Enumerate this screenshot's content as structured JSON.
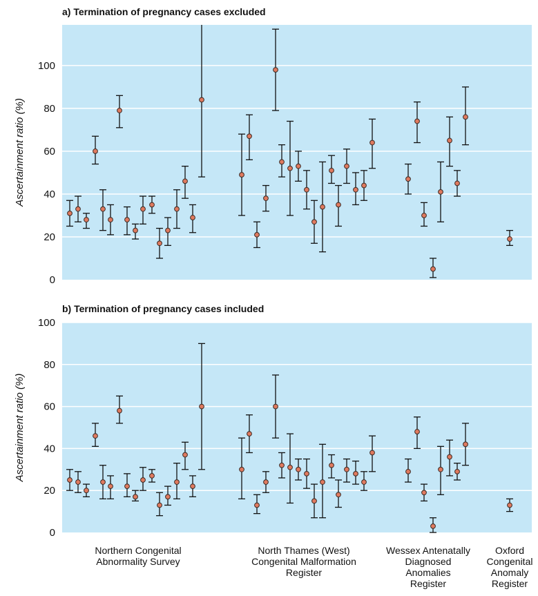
{
  "colors": {
    "plot_background": "#c5e7f7",
    "gridline": "#ffffff",
    "error_bar": "#111111",
    "point_fill": "#e07a5f",
    "point_stroke": "#3a2a25"
  },
  "chart_data": [
    {
      "type": "scatter",
      "title": "a) Termination of pregnancy cases excluded",
      "ylabel": "Ascertainment ratio (%)",
      "ylim": [
        0,
        119
      ],
      "yticks": [
        0,
        20,
        40,
        60,
        80,
        100
      ],
      "grid": true,
      "points": [
        {
          "group": 0,
          "index": 0,
          "value": 31,
          "lower": 25,
          "upper": 37
        },
        {
          "group": 0,
          "index": 1,
          "value": 33,
          "lower": 27,
          "upper": 39
        },
        {
          "group": 0,
          "index": 2,
          "value": 28,
          "lower": 24,
          "upper": 31
        },
        {
          "group": 0,
          "index": 3,
          "value": 60,
          "lower": 54,
          "upper": 67
        },
        {
          "group": 0,
          "index": 4,
          "value": 33,
          "lower": 23,
          "upper": 42
        },
        {
          "group": 0,
          "index": 5,
          "value": 28,
          "lower": 21,
          "upper": 35
        },
        {
          "group": 0,
          "index": 6,
          "value": 79,
          "lower": 71,
          "upper": 86
        },
        {
          "group": 0,
          "index": 7,
          "value": 28,
          "lower": 21,
          "upper": 34
        },
        {
          "group": 0,
          "index": 8,
          "value": 23,
          "lower": 19,
          "upper": 26
        },
        {
          "group": 0,
          "index": 9,
          "value": 33,
          "lower": 26,
          "upper": 39
        },
        {
          "group": 0,
          "index": 10,
          "value": 35,
          "lower": 31,
          "upper": 39
        },
        {
          "group": 0,
          "index": 11,
          "value": 17,
          "lower": 10,
          "upper": 24
        },
        {
          "group": 0,
          "index": 12,
          "value": 23,
          "lower": 16,
          "upper": 29
        },
        {
          "group": 0,
          "index": 13,
          "value": 33,
          "lower": 24,
          "upper": 42
        },
        {
          "group": 0,
          "index": 14,
          "value": 46,
          "lower": 38,
          "upper": 53
        },
        {
          "group": 0,
          "index": 15,
          "value": 29,
          "lower": 22,
          "upper": 35
        },
        {
          "group": 0,
          "index": 16,
          "value": 84,
          "lower": 48,
          "upper": 120
        },
        {
          "group": 1,
          "index": 0,
          "value": 49,
          "lower": 30,
          "upper": 68
        },
        {
          "group": 1,
          "index": 1,
          "value": 67,
          "lower": 56,
          "upper": 77
        },
        {
          "group": 1,
          "index": 2,
          "value": 21,
          "lower": 15,
          "upper": 27
        },
        {
          "group": 1,
          "index": 3,
          "value": 38,
          "lower": 32,
          "upper": 44
        },
        {
          "group": 1,
          "index": 4,
          "value": 98,
          "lower": 79,
          "upper": 117
        },
        {
          "group": 1,
          "index": 5,
          "value": 55,
          "lower": 48,
          "upper": 63
        },
        {
          "group": 1,
          "index": 6,
          "value": 52,
          "lower": 30,
          "upper": 74
        },
        {
          "group": 1,
          "index": 7,
          "value": 53,
          "lower": 46,
          "upper": 60
        },
        {
          "group": 1,
          "index": 8,
          "value": 42,
          "lower": 33,
          "upper": 51
        },
        {
          "group": 1,
          "index": 9,
          "value": 27,
          "lower": 17,
          "upper": 37
        },
        {
          "group": 1,
          "index": 10,
          "value": 34,
          "lower": 13,
          "upper": 55
        },
        {
          "group": 1,
          "index": 11,
          "value": 51,
          "lower": 45,
          "upper": 58
        },
        {
          "group": 1,
          "index": 12,
          "value": 35,
          "lower": 25,
          "upper": 44
        },
        {
          "group": 1,
          "index": 13,
          "value": 53,
          "lower": 45,
          "upper": 61
        },
        {
          "group": 1,
          "index": 14,
          "value": 42,
          "lower": 35,
          "upper": 50
        },
        {
          "group": 1,
          "index": 15,
          "value": 44,
          "lower": 37,
          "upper": 51
        },
        {
          "group": 1,
          "index": 16,
          "value": 64,
          "lower": 52,
          "upper": 75
        },
        {
          "group": 2,
          "index": 0,
          "value": 47,
          "lower": 40,
          "upper": 54
        },
        {
          "group": 2,
          "index": 1,
          "value": 74,
          "lower": 64,
          "upper": 83
        },
        {
          "group": 2,
          "index": 2,
          "value": 30,
          "lower": 25,
          "upper": 36
        },
        {
          "group": 2,
          "index": 3,
          "value": 5,
          "lower": 1,
          "upper": 10
        },
        {
          "group": 2,
          "index": 4,
          "value": 41,
          "lower": 27,
          "upper": 55
        },
        {
          "group": 2,
          "index": 5,
          "value": 65,
          "lower": 53,
          "upper": 76
        },
        {
          "group": 2,
          "index": 6,
          "value": 45,
          "lower": 39,
          "upper": 51
        },
        {
          "group": 2,
          "index": 7,
          "value": 76,
          "lower": 63,
          "upper": 90
        },
        {
          "group": 3,
          "index": 0,
          "value": 19,
          "lower": 16,
          "upper": 23
        }
      ]
    },
    {
      "type": "scatter",
      "title": "b) Termination of pregnancy cases included",
      "ylabel": "Ascertainment ratio (%)",
      "ylim": [
        0,
        100
      ],
      "yticks": [
        0,
        20,
        40,
        60,
        80,
        100
      ],
      "grid": true,
      "points": [
        {
          "group": 0,
          "index": 0,
          "value": 25,
          "lower": 20,
          "upper": 30
        },
        {
          "group": 0,
          "index": 1,
          "value": 24,
          "lower": 19,
          "upper": 29
        },
        {
          "group": 0,
          "index": 2,
          "value": 20,
          "lower": 17,
          "upper": 23
        },
        {
          "group": 0,
          "index": 3,
          "value": 46,
          "lower": 41,
          "upper": 52
        },
        {
          "group": 0,
          "index": 4,
          "value": 24,
          "lower": 16,
          "upper": 32
        },
        {
          "group": 0,
          "index": 5,
          "value": 22,
          "lower": 16,
          "upper": 27
        },
        {
          "group": 0,
          "index": 6,
          "value": 58,
          "lower": 52,
          "upper": 65
        },
        {
          "group": 0,
          "index": 7,
          "value": 22,
          "lower": 17,
          "upper": 28
        },
        {
          "group": 0,
          "index": 8,
          "value": 17,
          "lower": 15,
          "upper": 20
        },
        {
          "group": 0,
          "index": 9,
          "value": 25,
          "lower": 20,
          "upper": 31
        },
        {
          "group": 0,
          "index": 10,
          "value": 27,
          "lower": 24,
          "upper": 30
        },
        {
          "group": 0,
          "index": 11,
          "value": 13,
          "lower": 8,
          "upper": 19
        },
        {
          "group": 0,
          "index": 12,
          "value": 17,
          "lower": 13,
          "upper": 22
        },
        {
          "group": 0,
          "index": 13,
          "value": 24,
          "lower": 16,
          "upper": 33
        },
        {
          "group": 0,
          "index": 14,
          "value": 37,
          "lower": 30,
          "upper": 43
        },
        {
          "group": 0,
          "index": 15,
          "value": 22,
          "lower": 17,
          "upper": 27
        },
        {
          "group": 0,
          "index": 16,
          "value": 60,
          "lower": 30,
          "upper": 90
        },
        {
          "group": 1,
          "index": 0,
          "value": 30,
          "lower": 16,
          "upper": 45
        },
        {
          "group": 1,
          "index": 1,
          "value": 47,
          "lower": 38,
          "upper": 56
        },
        {
          "group": 1,
          "index": 2,
          "value": 13,
          "lower": 9,
          "upper": 18
        },
        {
          "group": 1,
          "index": 3,
          "value": 24,
          "lower": 19,
          "upper": 29
        },
        {
          "group": 1,
          "index": 4,
          "value": 60,
          "lower": 45,
          "upper": 75
        },
        {
          "group": 1,
          "index": 5,
          "value": 32,
          "lower": 26,
          "upper": 38
        },
        {
          "group": 1,
          "index": 6,
          "value": 31,
          "lower": 14,
          "upper": 47
        },
        {
          "group": 1,
          "index": 7,
          "value": 30,
          "lower": 25,
          "upper": 35
        },
        {
          "group": 1,
          "index": 8,
          "value": 28,
          "lower": 21,
          "upper": 35
        },
        {
          "group": 1,
          "index": 9,
          "value": 15,
          "lower": 7,
          "upper": 23
        },
        {
          "group": 1,
          "index": 10,
          "value": 24,
          "lower": 7,
          "upper": 42
        },
        {
          "group": 1,
          "index": 11,
          "value": 32,
          "lower": 26,
          "upper": 37
        },
        {
          "group": 1,
          "index": 12,
          "value": 18,
          "lower": 12,
          "upper": 25
        },
        {
          "group": 1,
          "index": 13,
          "value": 30,
          "lower": 24,
          "upper": 35
        },
        {
          "group": 1,
          "index": 14,
          "value": 28,
          "lower": 23,
          "upper": 34
        },
        {
          "group": 1,
          "index": 15,
          "value": 24,
          "lower": 20,
          "upper": 29
        },
        {
          "group": 1,
          "index": 16,
          "value": 38,
          "lower": 29,
          "upper": 46
        },
        {
          "group": 2,
          "index": 0,
          "value": 29,
          "lower": 24,
          "upper": 35
        },
        {
          "group": 2,
          "index": 1,
          "value": 48,
          "lower": 40,
          "upper": 55
        },
        {
          "group": 2,
          "index": 2,
          "value": 19,
          "lower": 15,
          "upper": 23
        },
        {
          "group": 2,
          "index": 3,
          "value": 3,
          "lower": 0,
          "upper": 7
        },
        {
          "group": 2,
          "index": 4,
          "value": 30,
          "lower": 18,
          "upper": 41
        },
        {
          "group": 2,
          "index": 5,
          "value": 36,
          "lower": 27,
          "upper": 44
        },
        {
          "group": 2,
          "index": 6,
          "value": 29,
          "lower": 25,
          "upper": 33
        },
        {
          "group": 2,
          "index": 7,
          "value": 42,
          "lower": 32,
          "upper": 52
        },
        {
          "group": 3,
          "index": 0,
          "value": 13,
          "lower": 10,
          "upper": 16
        }
      ]
    }
  ],
  "x_groups": [
    {
      "label_lines": [
        "Northern Congenital",
        "Abnormality Survey"
      ]
    },
    {
      "label_lines": [
        "North Thames (West)",
        "Congenital Malformation",
        "Register"
      ]
    },
    {
      "label_lines": [
        "Wessex Antenatally",
        "Diagnosed",
        "Anomalies",
        "Register"
      ]
    },
    {
      "label_lines": [
        "Oxford",
        "Congenital",
        "Anomaly",
        "Register"
      ]
    }
  ]
}
